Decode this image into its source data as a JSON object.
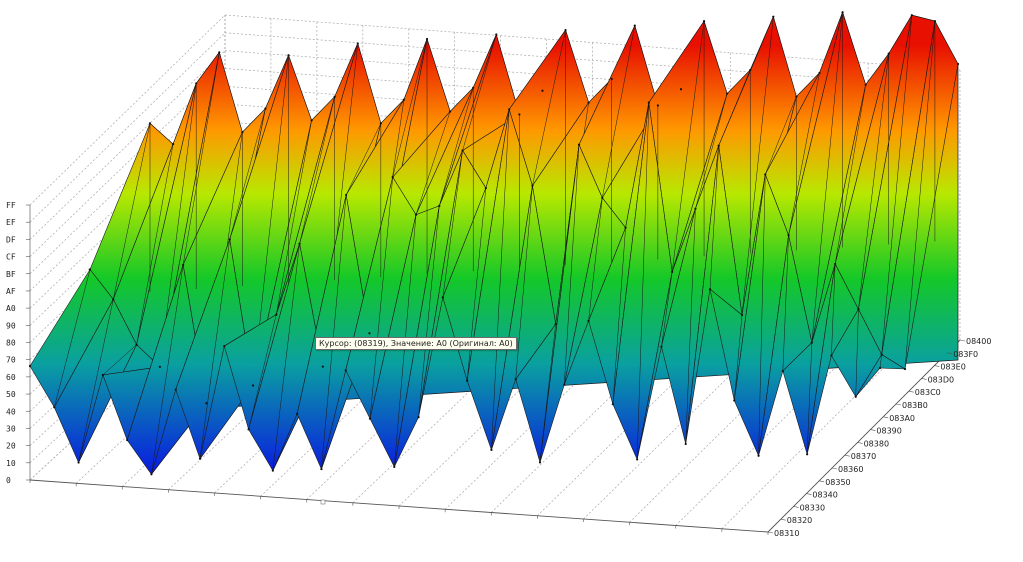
{
  "chart_data": {
    "type": "surface",
    "y_axis_ticks": [
      "FF",
      "EF",
      "DF",
      "CF",
      "BF",
      "AF",
      "A0",
      "90",
      "80",
      "70",
      "60",
      "50",
      "40",
      "30",
      "20",
      "10",
      "0"
    ],
    "depth_axis_ticks": [
      "08310",
      "08320",
      "08330",
      "08340",
      "08350",
      "08360",
      "08370",
      "08380",
      "08390",
      "083A0",
      "083B0",
      "083C0",
      "083D0",
      "083E0",
      "083F0",
      "08400"
    ],
    "zlim": [
      0,
      255
    ],
    "grid": true,
    "colormap": [
      "#0a1ee0",
      "#00c830",
      "#d8e800",
      "#ff9000",
      "#e81000"
    ],
    "front_row": [
      80,
      50,
      10,
      72,
      25,
      0,
      60,
      10,
      90,
      30,
      0,
      40,
      0,
      70,
      35,
      0,
      35,
      120,
      60,
      10,
      60,
      0,
      55,
      100,
      40,
      0,
      80,
      10,
      120,
      40,
      0,
      60,
      0,
      70,
      40,
      60
    ],
    "mid_row": [
      110,
      90,
      60,
      45,
      110,
      20,
      125,
      30,
      75,
      120,
      40,
      150,
      60,
      160,
      135,
      140,
      175,
      150,
      200,
      150,
      60,
      175,
      140,
      120,
      200,
      90,
      130,
      170,
      60,
      150,
      110,
      40,
      90,
      60,
      30,
      20
    ],
    "back_row": [
      195,
      180,
      220,
      240,
      185,
      200,
      235,
      190,
      205,
      240,
      185,
      200,
      240,
      190,
      205,
      240,
      185,
      200,
      240,
      190,
      205,
      240,
      185,
      195,
      240,
      190,
      205,
      240,
      185,
      200,
      240,
      190,
      210,
      235,
      230,
      200
    ],
    "tooltip": "Курсор: (08319), Значение: A0 (Оригинал: A0)"
  }
}
